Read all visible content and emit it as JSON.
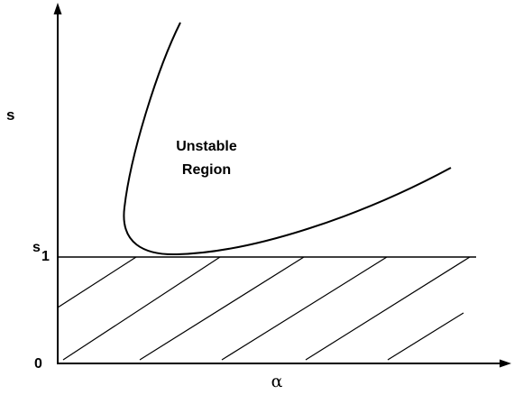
{
  "diagram": {
    "y_axis_label": "s",
    "x_axis_label": "α",
    "origin_label": "0",
    "threshold_label": {
      "main": "s",
      "subscript": "1"
    },
    "region_label": {
      "line1": "Unstable",
      "line2": "Region"
    },
    "colors": {
      "ink": "#000000",
      "background": "#ffffff"
    }
  }
}
